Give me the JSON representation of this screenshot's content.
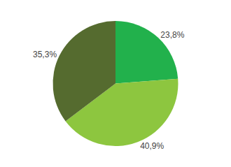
{
  "chart_data": {
    "type": "pie",
    "values": [
      23.8,
      40.9,
      35.3
    ],
    "value_labels": [
      "23,8%",
      "40,9%",
      "35,3%"
    ],
    "colors": [
      "#22b14c",
      "#8dc63f",
      "#556b2f"
    ],
    "data_labels": true
  }
}
